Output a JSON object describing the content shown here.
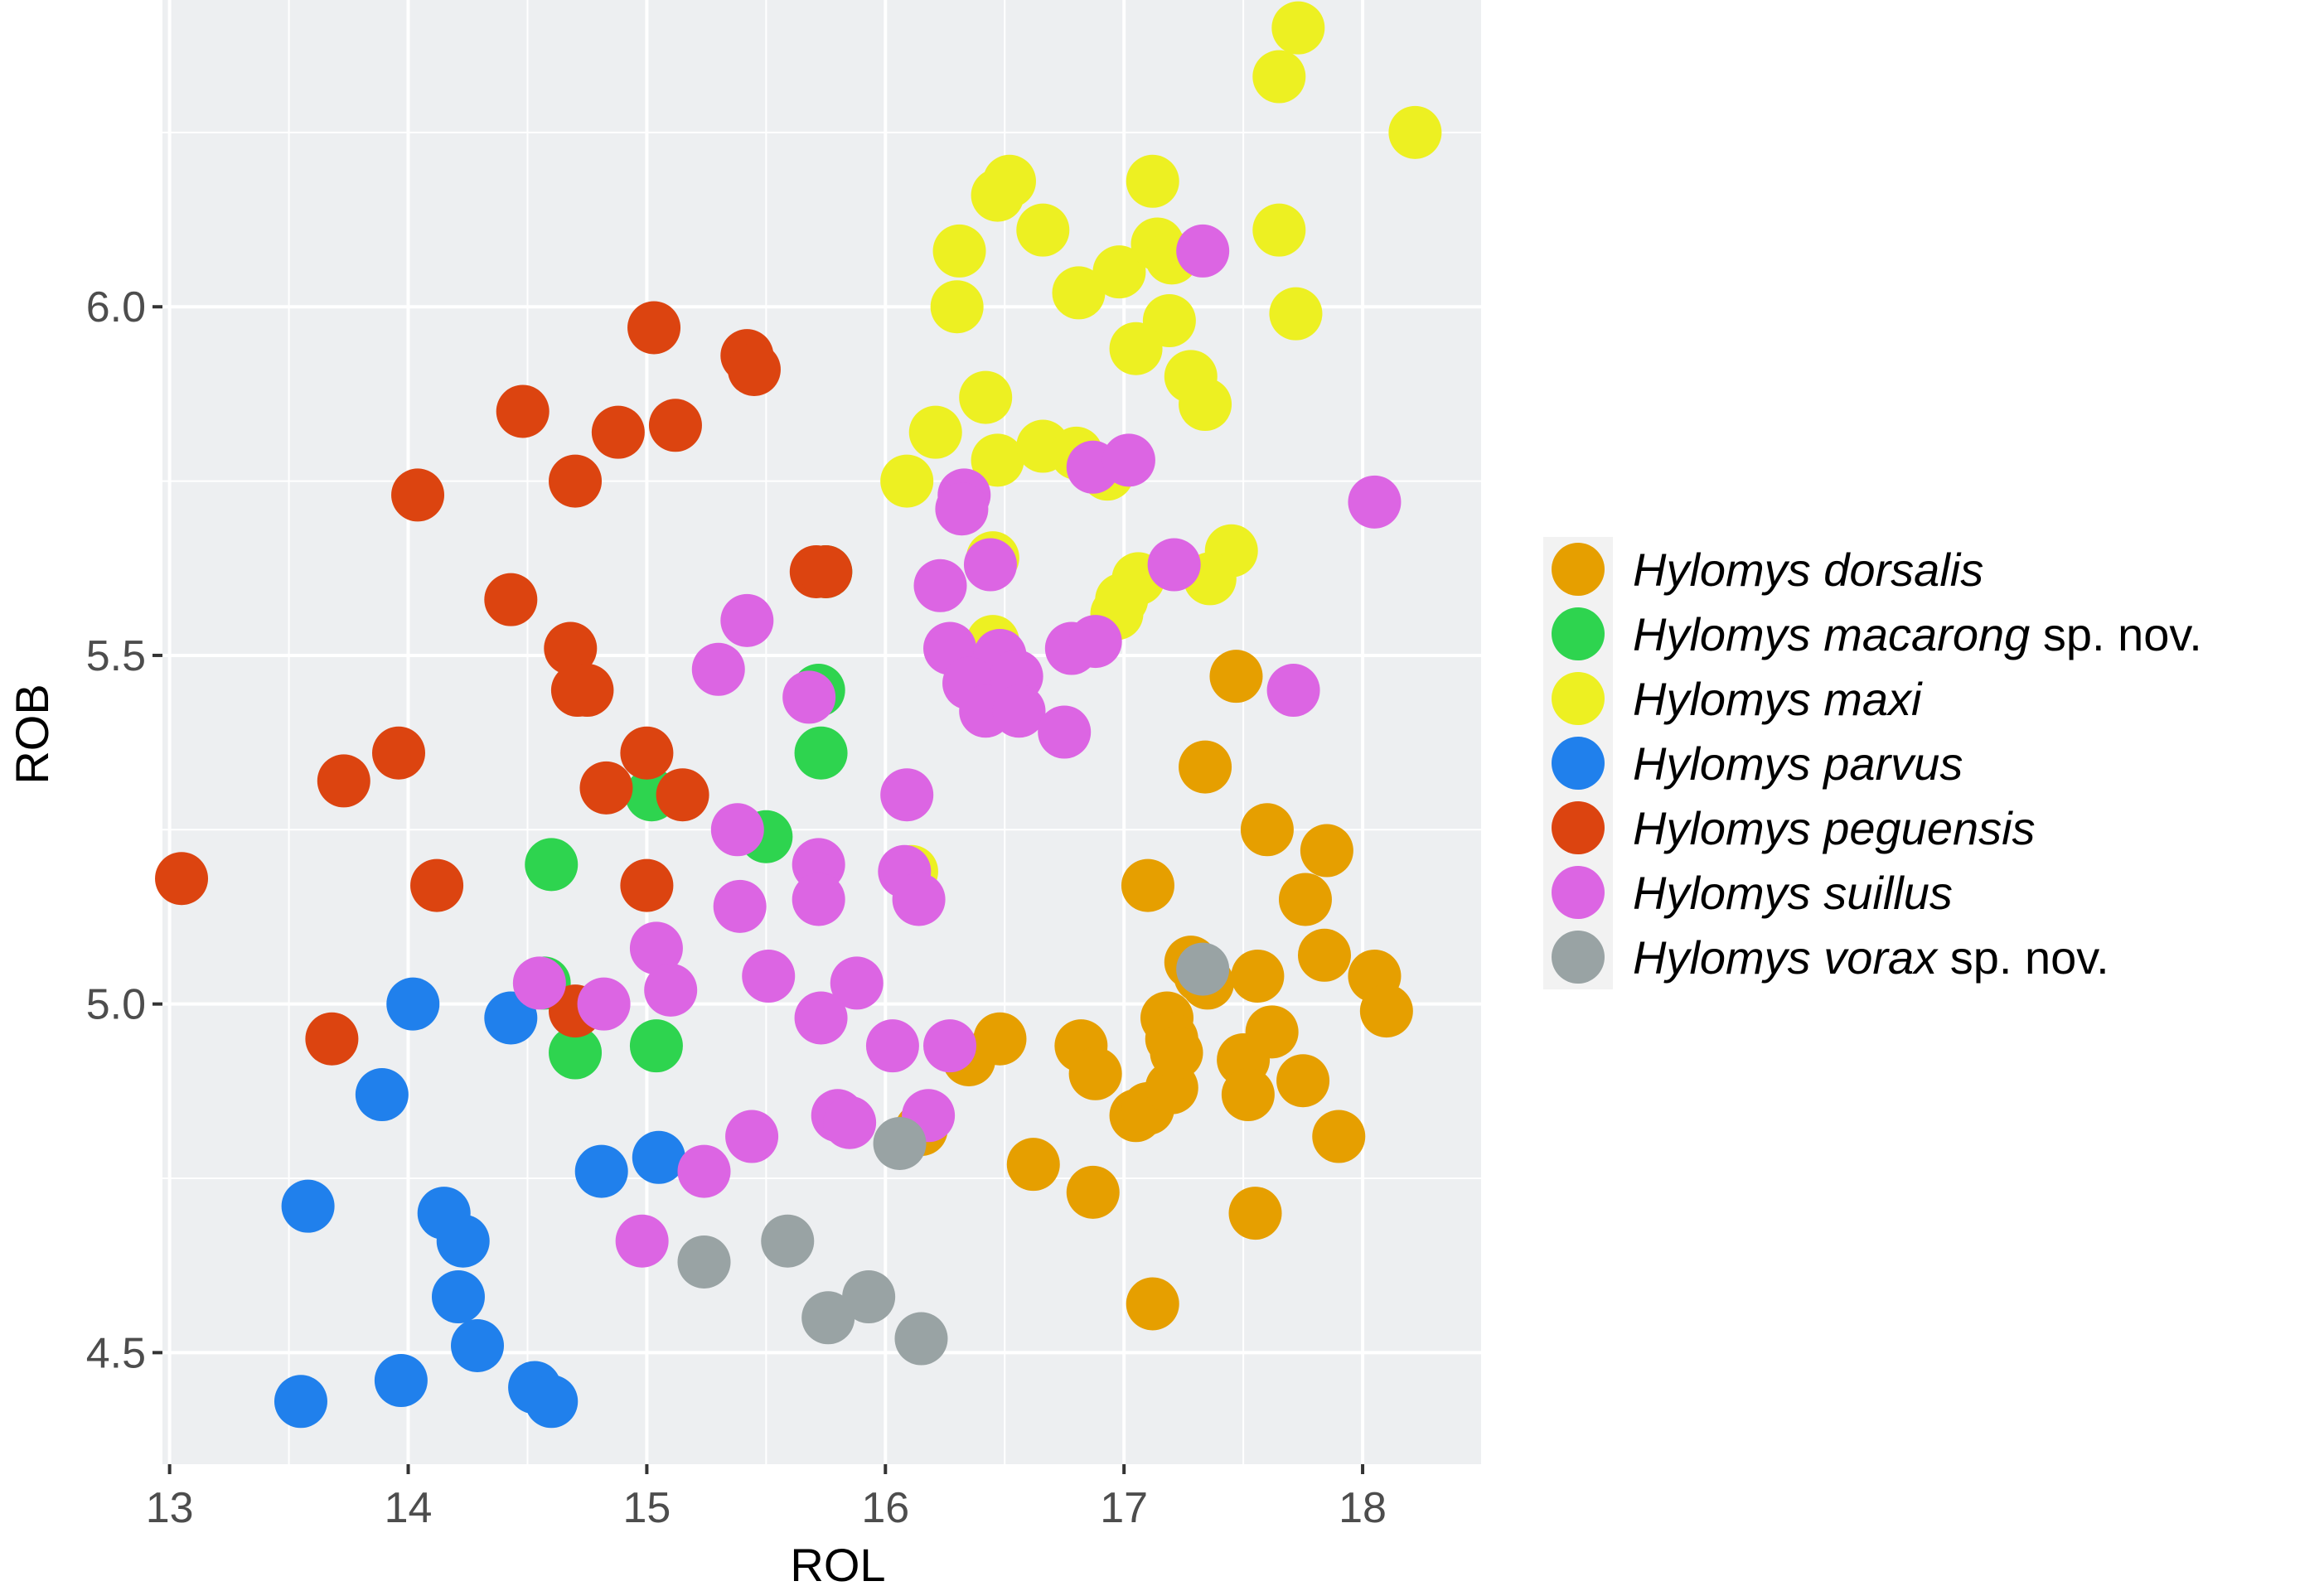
{
  "chart_data": {
    "type": "scatter",
    "title": "",
    "xlabel": "ROL",
    "ylabel": "ROB",
    "xlim": [
      12.97,
      18.5
    ],
    "ylim": [
      4.34,
      6.44
    ],
    "xticks": [
      13,
      14,
      15,
      16,
      17,
      18
    ],
    "yticks": [
      4.5,
      5.0,
      5.5,
      6.0
    ],
    "xtick_labels": [
      "13",
      "14",
      "15",
      "16",
      "17",
      "18"
    ],
    "ytick_labels": [
      "4.5",
      "5.0",
      "5.5",
      "6.0"
    ],
    "grid": true,
    "legend_position": "right",
    "series": [
      {
        "name": "Hylomys dorsalis",
        "name_italic": "Hylomys dorsalis",
        "name_suffix": "",
        "color": "#E69F00",
        "points": [
          [
            16.35,
            4.92
          ],
          [
            16.48,
            4.95
          ],
          [
            16.62,
            4.77
          ],
          [
            16.82,
            4.94
          ],
          [
            16.88,
            4.9
          ],
          [
            16.87,
            4.73
          ],
          [
            16.15,
            4.82
          ],
          [
            17.05,
            4.84
          ],
          [
            17.1,
            4.85
          ],
          [
            17.12,
            4.57
          ],
          [
            17.1,
            5.17
          ],
          [
            17.2,
            4.88
          ],
          [
            17.18,
            4.98
          ],
          [
            17.2,
            4.95
          ],
          [
            17.22,
            4.93
          ],
          [
            17.28,
            5.06
          ],
          [
            17.32,
            5.04
          ],
          [
            17.35,
            5.03
          ],
          [
            17.47,
            5.47
          ],
          [
            17.34,
            5.34
          ],
          [
            17.5,
            4.92
          ],
          [
            17.52,
            4.87
          ],
          [
            17.55,
            4.7
          ],
          [
            17.56,
            5.04
          ],
          [
            17.6,
            5.25
          ],
          [
            17.62,
            4.96
          ],
          [
            17.75,
            4.89
          ],
          [
            17.76,
            5.15
          ],
          [
            17.85,
            5.22
          ],
          [
            17.84,
            5.07
          ],
          [
            17.9,
            4.81
          ],
          [
            18.05,
            5.04
          ],
          [
            18.1,
            4.99
          ]
        ]
      },
      {
        "name": "Hylomys macarong sp. nov.",
        "name_italic": "Hylomys macarong",
        "name_suffix": " sp. nov.",
        "color": "#2ED44F",
        "points": [
          [
            14.6,
            5.2
          ],
          [
            14.57,
            5.03
          ],
          [
            14.7,
            4.93
          ],
          [
            15.02,
            5.3
          ],
          [
            15.04,
            4.94
          ],
          [
            15.5,
            5.24
          ],
          [
            15.72,
            5.45
          ],
          [
            15.73,
            5.36
          ],
          [
            15.75,
            5.62
          ]
        ]
      },
      {
        "name": "Hylomys maxi",
        "name_italic": "Hylomys maxi",
        "name_suffix": "",
        "color": "#EDF022",
        "points": [
          [
            17.73,
            6.4
          ],
          [
            17.65,
            6.33
          ],
          [
            18.22,
            6.25
          ],
          [
            17.65,
            6.11
          ],
          [
            17.72,
            5.99
          ],
          [
            16.52,
            6.18
          ],
          [
            16.47,
            6.16
          ],
          [
            16.66,
            6.11
          ],
          [
            16.31,
            6.08
          ],
          [
            16.3,
            6.0
          ],
          [
            16.81,
            6.02
          ],
          [
            16.98,
            6.05
          ],
          [
            17.12,
            6.18
          ],
          [
            17.14,
            6.09
          ],
          [
            17.2,
            6.07
          ],
          [
            17.19,
            5.98
          ],
          [
            17.05,
            5.94
          ],
          [
            17.28,
            5.9
          ],
          [
            17.34,
            5.86
          ],
          [
            16.42,
            5.87
          ],
          [
            16.21,
            5.82
          ],
          [
            16.47,
            5.78
          ],
          [
            16.66,
            5.8
          ],
          [
            16.8,
            5.79
          ],
          [
            16.93,
            5.76
          ],
          [
            16.09,
            5.75
          ],
          [
            16.45,
            5.64
          ],
          [
            16.45,
            5.52
          ],
          [
            17.45,
            5.65
          ],
          [
            17.36,
            5.61
          ],
          [
            17.06,
            5.61
          ],
          [
            16.99,
            5.58
          ],
          [
            16.97,
            5.56
          ],
          [
            16.11,
            5.19
          ]
        ]
      },
      {
        "name": "Hylomys parvus",
        "name_italic": "Hylomys parvus",
        "name_suffix": "",
        "color": "#2080EC",
        "points": [
          [
            14.02,
            5.0
          ],
          [
            14.43,
            4.98
          ],
          [
            13.89,
            4.87
          ],
          [
            13.58,
            4.71
          ],
          [
            14.15,
            4.7
          ],
          [
            14.23,
            4.66
          ],
          [
            14.21,
            4.58
          ],
          [
            14.29,
            4.51
          ],
          [
            13.55,
            4.43
          ],
          [
            13.97,
            4.46
          ],
          [
            14.53,
            4.45
          ],
          [
            14.6,
            4.43
          ],
          [
            14.81,
            4.76
          ],
          [
            15.05,
            4.78
          ]
        ]
      },
      {
        "name": "Hylomys peguensis",
        "name_italic": "Hylomys peguensis",
        "name_suffix": "",
        "color": "#DC4410",
        "points": [
          [
            15.03,
            5.97
          ],
          [
            15.42,
            5.93
          ],
          [
            15.45,
            5.91
          ],
          [
            14.48,
            5.85
          ],
          [
            14.88,
            5.82
          ],
          [
            15.12,
            5.83
          ],
          [
            14.7,
            5.75
          ],
          [
            14.04,
            5.73
          ],
          [
            14.43,
            5.58
          ],
          [
            15.71,
            5.62
          ],
          [
            15.75,
            5.62
          ],
          [
            14.68,
            5.51
          ],
          [
            14.71,
            5.45
          ],
          [
            14.75,
            5.45
          ],
          [
            15.0,
            5.36
          ],
          [
            13.96,
            5.36
          ],
          [
            13.73,
            5.32
          ],
          [
            14.83,
            5.31
          ],
          [
            15.15,
            5.3
          ],
          [
            13.05,
            5.18
          ],
          [
            14.12,
            5.17
          ],
          [
            15.0,
            5.17
          ],
          [
            14.7,
            4.99
          ],
          [
            13.68,
            4.95
          ]
        ]
      },
      {
        "name": "Hylomys suillus",
        "name_italic": "Hylomys suillus",
        "name_suffix": "",
        "color": "#DC65E3",
        "points": [
          [
            17.33,
            6.08
          ],
          [
            16.87,
            5.77
          ],
          [
            17.02,
            5.78
          ],
          [
            18.05,
            5.72
          ],
          [
            16.33,
            5.73
          ],
          [
            16.32,
            5.71
          ],
          [
            16.44,
            5.63
          ],
          [
            16.23,
            5.6
          ],
          [
            17.21,
            5.63
          ],
          [
            15.42,
            5.55
          ],
          [
            15.3,
            5.48
          ],
          [
            16.27,
            5.51
          ],
          [
            16.48,
            5.5
          ],
          [
            16.35,
            5.46
          ],
          [
            16.42,
            5.42
          ],
          [
            16.55,
            5.47
          ],
          [
            16.56,
            5.42
          ],
          [
            16.78,
            5.51
          ],
          [
            16.88,
            5.52
          ],
          [
            17.71,
            5.45
          ],
          [
            15.68,
            5.44
          ],
          [
            16.75,
            5.39
          ],
          [
            16.09,
            5.3
          ],
          [
            15.38,
            5.25
          ],
          [
            15.72,
            5.2
          ],
          [
            16.08,
            5.19
          ],
          [
            15.39,
            5.14
          ],
          [
            15.72,
            5.15
          ],
          [
            16.14,
            5.15
          ],
          [
            15.04,
            5.08
          ],
          [
            15.1,
            5.02
          ],
          [
            15.51,
            5.04
          ],
          [
            15.88,
            5.03
          ],
          [
            14.55,
            5.03
          ],
          [
            14.82,
            5.0
          ],
          [
            15.73,
            4.98
          ],
          [
            16.03,
            4.94
          ],
          [
            16.27,
            4.94
          ],
          [
            15.8,
            4.84
          ],
          [
            15.85,
            4.83
          ],
          [
            16.18,
            4.84
          ],
          [
            15.44,
            4.81
          ],
          [
            15.24,
            4.76
          ],
          [
            14.98,
            4.66
          ]
        ]
      },
      {
        "name": "Hylomys vorax sp. nov.",
        "name_italic": "Hylomys vorax",
        "name_suffix": " sp. nov.",
        "color": "#99A3A4",
        "points": [
          [
            17.33,
            5.05
          ],
          [
            16.06,
            4.8
          ],
          [
            15.59,
            4.66
          ],
          [
            15.24,
            4.63
          ],
          [
            15.76,
            4.55
          ],
          [
            15.93,
            4.58
          ],
          [
            16.15,
            4.52
          ]
        ]
      }
    ]
  }
}
